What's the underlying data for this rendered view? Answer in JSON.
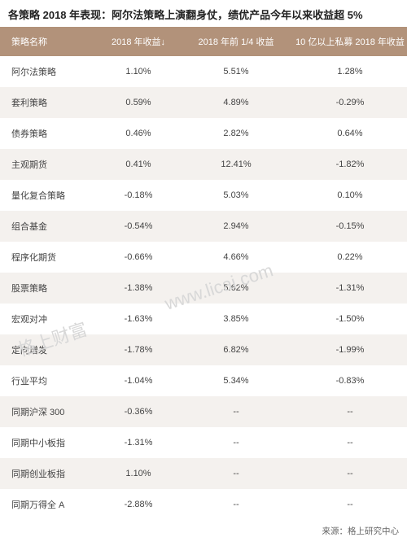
{
  "title": "各策略 2018 年表现：阿尔法策略上演翻身仗，绩优产品今年以来收益超 5%",
  "header_bg": "#b2927a",
  "header_fg": "#ffffff",
  "row_even_bg": "#ffffff",
  "row_odd_bg": "#f4f1ee",
  "text_color": "#444444",
  "font_family": "Microsoft YaHei",
  "col_widths": [
    "24%",
    "20%",
    "28%",
    "28%"
  ],
  "columns": [
    "策略名称",
    "2018 年收益↓",
    "2018 年前 1/4 收益",
    "10 亿以上私募 2018 年收益"
  ],
  "rows": [
    [
      "阿尔法策略",
      "1.10%",
      "5.51%",
      "1.28%"
    ],
    [
      "套利策略",
      "0.59%",
      "4.89%",
      "-0.29%"
    ],
    [
      "债券策略",
      "0.46%",
      "2.82%",
      "0.64%"
    ],
    [
      "主观期货",
      "0.41%",
      "12.41%",
      "-1.82%"
    ],
    [
      "量化复合策略",
      "-0.18%",
      "5.03%",
      "0.10%"
    ],
    [
      "组合基金",
      "-0.54%",
      "2.94%",
      "-0.15%"
    ],
    [
      "程序化期货",
      "-0.66%",
      "4.66%",
      "0.22%"
    ],
    [
      "股票策略",
      "-1.38%",
      "5.62%",
      "-1.31%"
    ],
    [
      "宏观对冲",
      "-1.63%",
      "3.85%",
      "-1.50%"
    ],
    [
      "定向增发",
      "-1.78%",
      "6.82%",
      "-1.99%"
    ],
    [
      "行业平均",
      "-1.04%",
      "5.34%",
      "-0.83%"
    ],
    [
      "同期沪深 300",
      "-0.36%",
      "--",
      "--"
    ],
    [
      "同期中小板指",
      "-1.31%",
      "--",
      "--"
    ],
    [
      "同期创业板指",
      "1.10%",
      "--",
      "--"
    ],
    [
      "同期万得全 A",
      "-2.88%",
      "--",
      "--"
    ]
  ],
  "watermarks": [
    "www.licai.com",
    "格上财富"
  ],
  "source": "来源：格上研究中心"
}
